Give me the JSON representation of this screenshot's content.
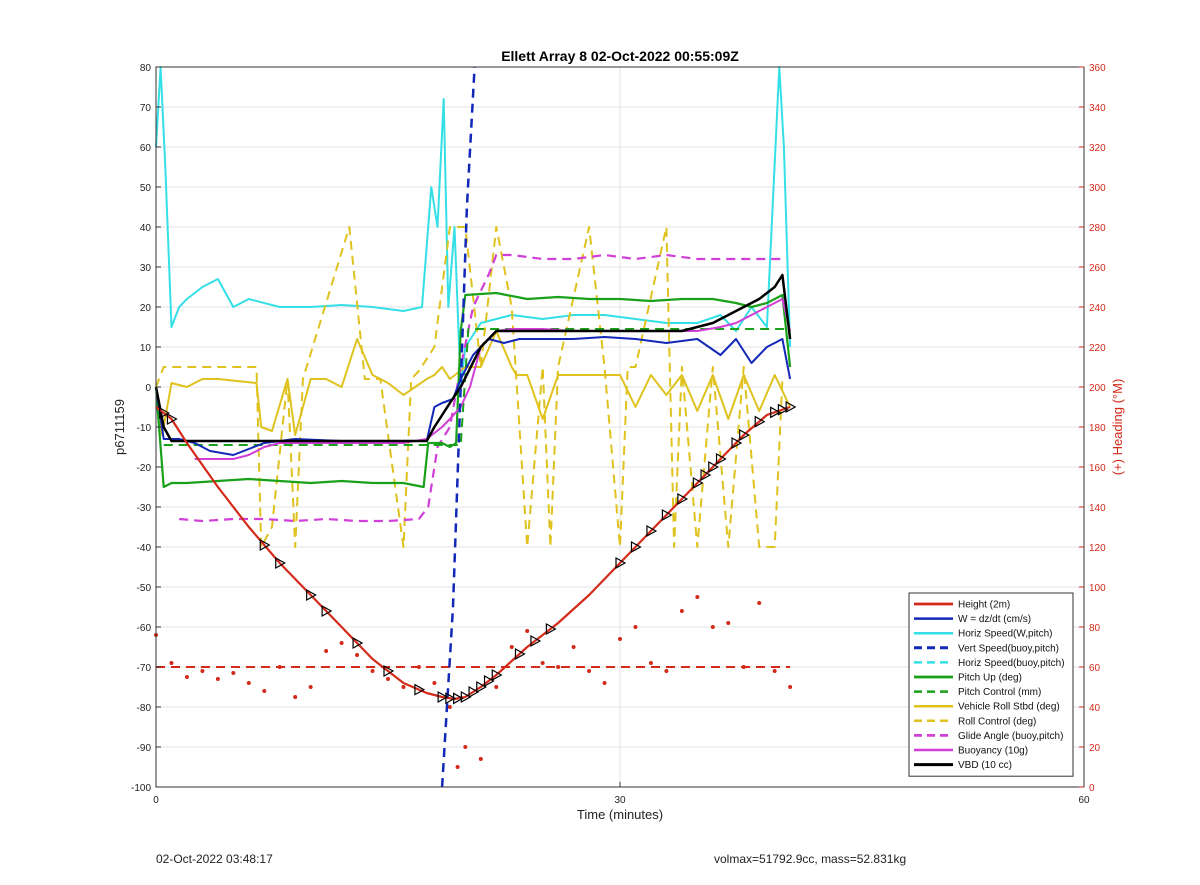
{
  "chart_data": {
    "type": "line",
    "title": "Ellett Array 8 02-Oct-2022 00:55:09Z",
    "xlabel": "Time (minutes)",
    "ylabel_left": "p6711159",
    "ylabel_right": "(+) Heading (°M)",
    "xlim": [
      0,
      60
    ],
    "ylim_left": [
      -100,
      80
    ],
    "ylim_right": [
      0,
      360
    ],
    "xticks": [
      0,
      30,
      60
    ],
    "yticks_left": [
      -100,
      -90,
      -80,
      -70,
      -60,
      -50,
      -40,
      -30,
      -20,
      -10,
      0,
      10,
      20,
      30,
      40,
      50,
      60,
      70,
      80
    ],
    "yticks_right": [
      0,
      20,
      40,
      60,
      80,
      100,
      120,
      140,
      160,
      180,
      200,
      220,
      240,
      260,
      280,
      300,
      320,
      340,
      360
    ],
    "grid": true,
    "legend_position": "bottom-right",
    "series": [
      {
        "name": "Height (2m)",
        "color": "#d42a1a",
        "dash": false,
        "width": 2.2,
        "x": [
          0,
          1,
          2,
          4,
          6,
          8,
          10,
          12,
          14,
          16,
          17.5,
          18.5,
          19.3,
          20,
          21,
          22,
          24,
          26,
          28,
          30,
          32,
          34,
          36,
          38,
          39.5,
          41
        ],
        "y": [
          -5,
          -8,
          -14,
          -25,
          -35,
          -44,
          -52,
          -60,
          -68,
          -74,
          -76.5,
          -77.5,
          -78,
          -77.5,
          -75,
          -72,
          -65,
          -59,
          -52,
          -44,
          -36,
          -28,
          -20,
          -12,
          -7,
          -5
        ]
      },
      {
        "name": "W = dz/dt (cm/s)",
        "color": "#1228b8",
        "dash": false,
        "width": 2,
        "x": [
          0,
          0.5,
          1.5,
          2.5,
          3.5,
          5,
          7,
          9,
          12,
          15,
          17.5,
          18,
          18.5,
          19.2,
          19.7,
          20.5,
          21.5,
          22.5,
          23.5,
          25,
          27,
          29,
          31,
          33,
          35,
          36.5,
          37.5,
          38.5,
          39.5,
          40.5,
          41
        ],
        "y": [
          0,
          -13,
          -13,
          -14,
          -16,
          -17,
          -14,
          -13,
          -13.5,
          -13.5,
          -13.5,
          -5,
          -4,
          -3,
          2,
          8,
          12,
          11,
          12,
          12,
          12,
          12.5,
          12,
          11,
          12,
          8,
          12,
          6,
          10,
          12,
          2
        ]
      },
      {
        "name": "Horiz Speed(W,pitch)",
        "color": "#34dfe6",
        "dash": false,
        "width": 2,
        "x": [
          0,
          0.3,
          0.6,
          1,
          1.5,
          2,
          3,
          4,
          5,
          6,
          8,
          10,
          12,
          14,
          16,
          17.2,
          17.8,
          18.2,
          18.6,
          18.9,
          19.3,
          19.7,
          20,
          21,
          23,
          25,
          27,
          29,
          31,
          33,
          35,
          36.5,
          37.5,
          38.5,
          39.5,
          40.3,
          40.6,
          41
        ],
        "y": [
          60,
          80,
          55,
          15,
          20,
          22,
          25,
          27,
          20,
          22,
          20,
          20,
          20.5,
          20,
          19,
          20,
          50,
          40,
          72,
          20,
          40,
          0,
          10,
          16,
          18,
          17,
          18,
          18,
          17,
          16,
          16,
          18,
          14,
          20,
          15,
          80,
          60,
          10
        ]
      },
      {
        "name": "Vert Speed(buoy,pitch)",
        "color": "#1228b8",
        "dash": true,
        "width": 2.5,
        "x": [
          18.5,
          19.2,
          19.7,
          20.1,
          20.6
        ],
        "y": [
          -100,
          -55,
          0,
          45,
          80
        ]
      },
      {
        "name": "Horiz Speed(buoy,pitch)",
        "color": "#34dfe6",
        "dash": true,
        "width": 2,
        "x": [],
        "y": []
      },
      {
        "name": "Pitch Up (deg)",
        "color": "#1aa11a",
        "dash": false,
        "width": 2.2,
        "x": [
          0,
          0.5,
          1,
          2,
          4,
          6,
          8,
          10,
          12,
          14,
          16,
          17.3,
          17.6,
          18.5,
          19,
          19.4,
          19.7,
          20,
          22,
          24,
          26,
          28,
          30,
          32,
          34,
          36,
          37.5,
          38.5,
          39.5,
          40.5,
          41
        ],
        "y": [
          0,
          -25,
          -24,
          -24,
          -23.5,
          -23,
          -23.5,
          -24,
          -23.5,
          -24,
          -24,
          -25,
          -14,
          -14,
          -15,
          -14,
          14,
          23,
          23.5,
          22,
          22.5,
          22,
          22,
          21.5,
          22,
          22,
          21,
          20,
          21,
          23,
          5
        ]
      },
      {
        "name": "Pitch Control (mm)",
        "color": "#1aa11a",
        "dash": true,
        "width": 2,
        "x": [
          0.5,
          17.5,
          17.8,
          19.7,
          20.2,
          41
        ],
        "y": [
          -14.5,
          -14.5,
          -14.5,
          -14.5,
          14.5,
          14.5
        ]
      },
      {
        "name": "Vehicle Roll Stbd (deg)",
        "color": "#dfc21e",
        "dash": false,
        "width": 2,
        "x": [
          0,
          0.4,
          1,
          2,
          3,
          4,
          6.5,
          6.8,
          7.5,
          8.5,
          9,
          10,
          11,
          12,
          13,
          14,
          15,
          16,
          17.5,
          18,
          18.5,
          19,
          20,
          21,
          22,
          23,
          23.3,
          24,
          25,
          26,
          27,
          28,
          30,
          31,
          32,
          33,
          34,
          35,
          36,
          37,
          38,
          39,
          40,
          41
        ],
        "y": [
          0,
          -12,
          1,
          0,
          2,
          2,
          1,
          -10,
          -11,
          2,
          -12,
          2,
          2,
          0,
          12,
          3,
          1,
          -2,
          2,
          3,
          5,
          2,
          5,
          5,
          14,
          5,
          3,
          3,
          -8,
          3,
          3,
          3,
          3,
          -5,
          3,
          -2,
          3,
          -6,
          3,
          -8,
          3,
          -6,
          3,
          -5
        ]
      },
      {
        "name": "Roll Control (deg)",
        "color": "#dfc21e",
        "dash": true,
        "width": 2,
        "x": [
          0,
          0.5,
          6.5,
          6.8,
          7.5,
          8.5,
          9,
          9.5,
          12.5,
          13.5,
          14.5,
          16,
          16.5,
          17,
          18,
          19,
          20,
          21,
          22,
          23,
          24,
          25,
          25.5,
          26,
          28,
          29,
          30,
          30.5,
          31,
          33,
          33.5,
          34,
          35,
          36,
          37,
          38,
          39,
          40,
          40.5
        ],
        "y": [
          0,
          5,
          5,
          -40,
          -35,
          2,
          -40,
          2,
          40,
          2,
          2,
          -40,
          2,
          4,
          10,
          40,
          40,
          5,
          40,
          20,
          -40,
          5,
          -40,
          5,
          40,
          5,
          -40,
          5,
          5,
          40,
          -40,
          5,
          -40,
          5,
          -40,
          5,
          -40,
          -40,
          2
        ]
      },
      {
        "name": "Glide Angle (buoy,pitch)",
        "color": "#d13ed8",
        "dash": true,
        "width": 2.2,
        "x": [
          1.5,
          3,
          5,
          7,
          9,
          11,
          13,
          15,
          17,
          17.6,
          18.2,
          19,
          19.7,
          20.5,
          21.5,
          22,
          23,
          25,
          27,
          29,
          31,
          33,
          35,
          37,
          39,
          40.5
        ],
        "y": [
          -33,
          -33.5,
          -33,
          -33,
          -33.5,
          -33,
          -33.5,
          -33.5,
          -33,
          -30,
          -15,
          -10,
          5,
          20,
          28,
          33,
          33,
          32,
          32,
          33,
          32,
          33,
          32,
          32,
          32,
          32
        ]
      },
      {
        "name": "Buoyancy (10g)",
        "color": "#d13ed8",
        "dash": false,
        "width": 2,
        "x": [
          2.5,
          4,
          5,
          6,
          7,
          8,
          10,
          12,
          14,
          16,
          17.5,
          18.5,
          19,
          19.7,
          20.3,
          21,
          22,
          23,
          25,
          27,
          30,
          33,
          35,
          36.5,
          37.5,
          38.5,
          39.5,
          40.5,
          41
        ],
        "y": [
          -18,
          -18,
          -18,
          -17,
          -15,
          -14,
          -14,
          -14,
          -14,
          -14,
          -13,
          -10,
          -8,
          -5,
          0,
          10,
          14,
          14.5,
          14.5,
          14,
          14,
          14,
          14,
          15,
          16,
          18,
          20,
          22,
          14
        ]
      },
      {
        "name": "VBD (10 cc)",
        "color": "#000000",
        "dash": false,
        "width": 2.5,
        "x": [
          0,
          0.5,
          1,
          3,
          6,
          9,
          12,
          15,
          17.5,
          18,
          19,
          19.7,
          21,
          22,
          24,
          26,
          28,
          30,
          32,
          34,
          35,
          36,
          37,
          38,
          39,
          40,
          40.5,
          41
        ],
        "y": [
          0,
          -10,
          -13.5,
          -13.5,
          -13.5,
          -13.5,
          -13.5,
          -13.5,
          -13.5,
          -10,
          -4,
          0,
          10,
          14,
          14,
          14,
          14,
          14,
          14,
          14,
          15,
          16,
          18,
          20,
          22,
          25,
          28,
          12
        ]
      }
    ],
    "heading_dashed_line": {
      "value": 60,
      "color": "#d42a1a"
    },
    "heading_points": {
      "color": "#d42a1a",
      "x": [
        0,
        1,
        2,
        3,
        4,
        5,
        6,
        7,
        8,
        9,
        10,
        11,
        12,
        13,
        14,
        15,
        16,
        17,
        18,
        19,
        19.5,
        20,
        21,
        22,
        23,
        24,
        25,
        26,
        27,
        28,
        29,
        30,
        31,
        32,
        33,
        34,
        35,
        36,
        37,
        38,
        39,
        40,
        41
      ],
      "y": [
        76,
        62,
        55,
        58,
        54,
        57,
        52,
        48,
        60,
        45,
        50,
        68,
        72,
        66,
        58,
        54,
        50,
        60,
        52,
        40,
        10,
        20,
        14,
        50,
        70,
        78,
        62,
        60,
        70,
        58,
        52,
        74,
        80,
        62,
        58,
        88,
        95,
        80,
        82,
        60,
        92,
        58,
        50
      ]
    },
    "markers": {
      "x": [
        0.5,
        1,
        7,
        8,
        10,
        11,
        13,
        15,
        17,
        18.5,
        19,
        19.5,
        20,
        20.5,
        21,
        21.5,
        22,
        23.5,
        24.5,
        25.5,
        30,
        31,
        32,
        33,
        34,
        35,
        35.5,
        36,
        36.5,
        37.5,
        38,
        39,
        40,
        40.5,
        41
      ]
    }
  },
  "footer_left": "02-Oct-2022 03:48:17",
  "footer_right": "volmax=51792.9cc, mass=52.831kg"
}
